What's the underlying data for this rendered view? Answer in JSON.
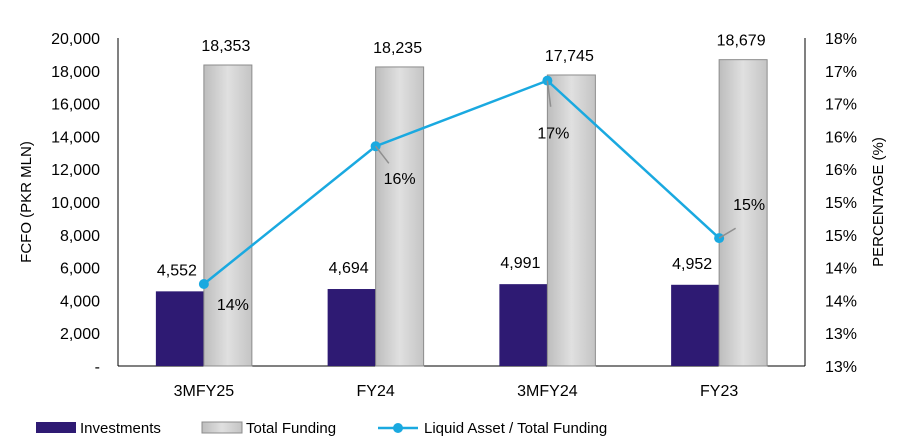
{
  "chart_data": {
    "type": "bar",
    "categories": [
      "3MFY25",
      "FY24",
      "3MFY24",
      "FY23"
    ],
    "ylabel": "FCFO (PKR MLN)",
    "y2label": "PERCENTAGE (%)",
    "ylim": [
      0,
      20000
    ],
    "y2lim": [
      13,
      18
    ],
    "yticks": [
      0,
      2000,
      4000,
      6000,
      8000,
      10000,
      12000,
      14000,
      16000,
      18000,
      20000
    ],
    "ytick_labels": [
      "-",
      "2,000",
      "4,000",
      "6,000",
      "8,000",
      "10,000",
      "12,000",
      "14,000",
      "16,000",
      "18,000",
      "20,000"
    ],
    "y2ticks": [
      13,
      13.5,
      14,
      14.5,
      15,
      15.5,
      16,
      16.5,
      17,
      17.5,
      18
    ],
    "y2tick_labels": [
      "13%",
      "13%",
      "14%",
      "14%",
      "15%",
      "15%",
      "16%",
      "16%",
      "17%",
      "17%",
      "18%"
    ],
    "grid": false,
    "legend_position": "bottom",
    "series": [
      {
        "name": "Investments",
        "type": "bar",
        "axis": "left",
        "color": "#2e1a73",
        "values": [
          4552,
          4694,
          4991,
          4952
        ],
        "labels": [
          "4,552",
          "4,694",
          "4,991",
          "4,952"
        ]
      },
      {
        "name": "Total Funding",
        "type": "bar",
        "axis": "left",
        "color": "#cfcfcf",
        "values": [
          18353,
          18235,
          17745,
          18679
        ],
        "labels": [
          "18,353",
          "18,235",
          "17,745",
          "18,679"
        ]
      },
      {
        "name": "Liquid Asset / Total Funding",
        "type": "line",
        "axis": "right",
        "color": "#1aa9e0",
        "values": [
          14.25,
          16.35,
          17.35,
          14.95
        ],
        "labels": [
          "14%",
          "16%",
          "17%",
          "15%"
        ]
      }
    ]
  }
}
